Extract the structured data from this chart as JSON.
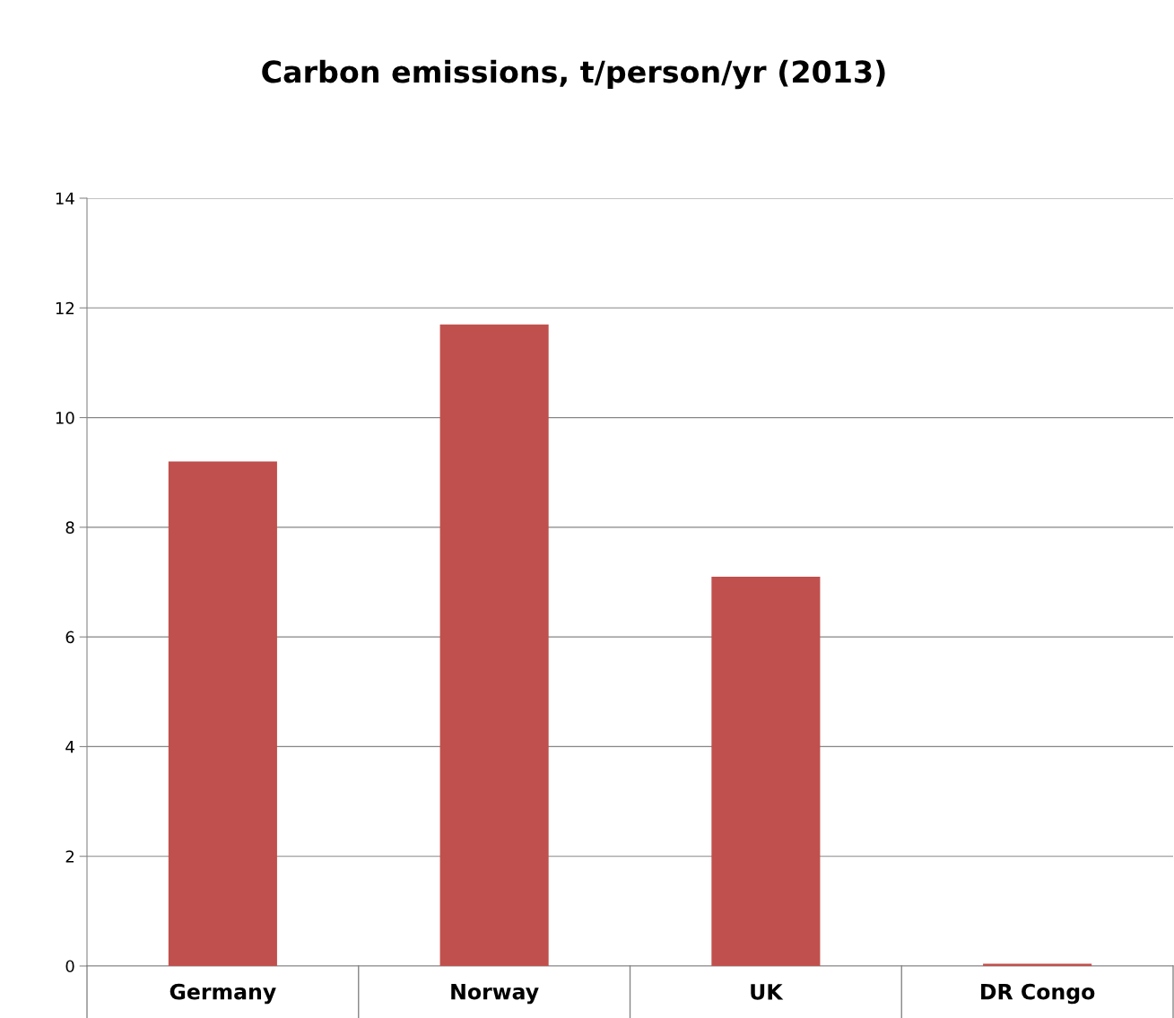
{
  "chart_data": {
    "type": "bar",
    "title": "Carbon emissions, t/person/yr (2013)",
    "categories": [
      "Germany",
      "Norway",
      "UK",
      "DR Congo"
    ],
    "values": [
      9.2,
      11.7,
      7.1,
      0.04
    ],
    "color": "#c0504d",
    "ylim": [
      0,
      14
    ],
    "yticks": [
      0,
      2,
      4,
      6,
      8,
      10,
      12,
      14
    ],
    "grid": "y",
    "legend": false
  }
}
